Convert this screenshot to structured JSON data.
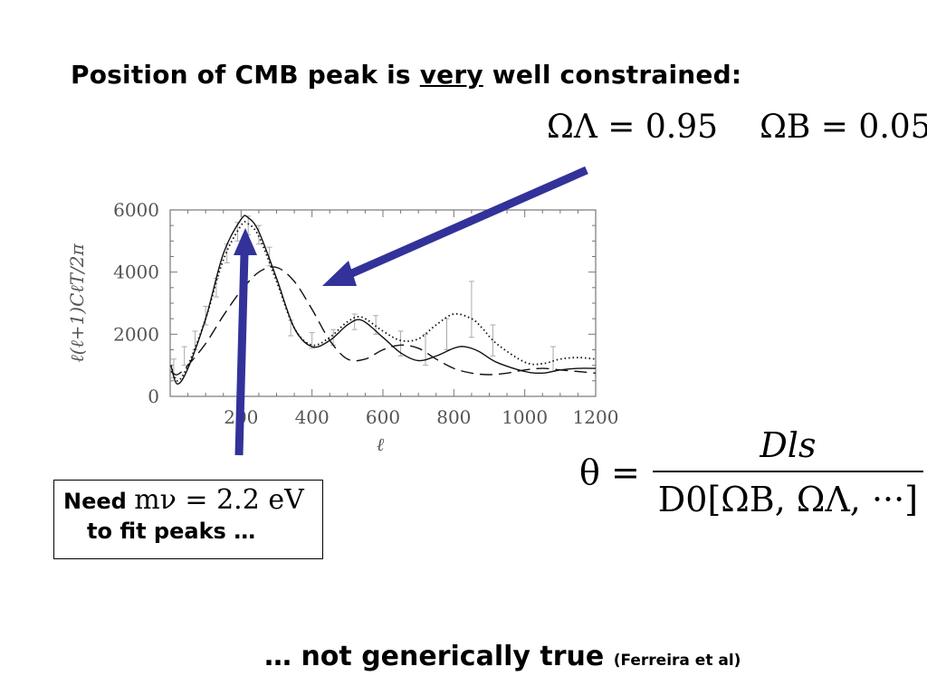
{
  "slide": {
    "heading_prefix": "Position of CMB peak is ",
    "heading_emph": "very",
    "heading_suffix": " well constrained:",
    "omega_lambda": "ΩΛ = 0.95",
    "omega_b": "ΩB = 0.05",
    "theta_lhs": "θ =",
    "theta_num": "Dls",
    "theta_den": "D0[ΩB, ΩΛ, ···]",
    "note_need": "Need ",
    "note_math": "mν = 2.2 eV",
    "note_line2": "to fit peaks …",
    "footer_main": "… not generically true ",
    "footer_cite": "(Ferreira et al)"
  },
  "colors": {
    "arrow": "#32329a",
    "curve": "#111111",
    "axis": "#777777",
    "error_bar": "#aaaaaa"
  },
  "chart_data": {
    "type": "line",
    "xlabel": "ℓ",
    "ylabel": "ℓ(ℓ+1)CℓT/2π",
    "xlim": [
      0,
      1200
    ],
    "ylim": [
      0,
      6000
    ],
    "x_ticks": [
      200,
      400,
      600,
      800,
      1000,
      1200
    ],
    "y_ticks": [
      0,
      2000,
      4000,
      6000
    ],
    "grid": false,
    "series": [
      {
        "style": "solid",
        "x": [
          2,
          20,
          50,
          100,
          150,
          200,
          220,
          250,
          300,
          350,
          400,
          450,
          500,
          540,
          600,
          650,
          700,
          750,
          800,
          830,
          870,
          920,
          1000,
          1050,
          1100,
          1150,
          1200
        ],
        "y": [
          1000,
          400,
          900,
          2500,
          4600,
          5700,
          5750,
          5300,
          3800,
          2200,
          1600,
          1800,
          2300,
          2450,
          1900,
          1400,
          1150,
          1300,
          1550,
          1600,
          1450,
          1100,
          800,
          750,
          850,
          900,
          900
        ]
      },
      {
        "style": "dotted",
        "x": [
          2,
          20,
          50,
          100,
          150,
          200,
          220,
          250,
          300,
          350,
          400,
          450,
          500,
          540,
          600,
          650,
          700,
          750,
          800,
          850,
          880,
          920,
          1000,
          1050,
          1100,
          1150,
          1200
        ],
        "y": [
          1000,
          500,
          1000,
          2500,
          4400,
          5500,
          5550,
          5150,
          3700,
          2200,
          1650,
          1900,
          2400,
          2550,
          2100,
          1800,
          1850,
          2300,
          2650,
          2500,
          2200,
          1700,
          1100,
          1050,
          1200,
          1250,
          1200
        ]
      },
      {
        "style": "dashed",
        "x": [
          2,
          20,
          50,
          100,
          150,
          200,
          250,
          300,
          350,
          400,
          450,
          500,
          550,
          600,
          650,
          700,
          750,
          800,
          850,
          900,
          950,
          1000,
          1050,
          1100,
          1150,
          1200
        ],
        "y": [
          800,
          700,
          1000,
          1700,
          2600,
          3400,
          4000,
          4150,
          3700,
          2800,
          1800,
          1200,
          1200,
          1500,
          1650,
          1550,
          1200,
          900,
          750,
          700,
          750,
          850,
          900,
          850,
          800,
          750
        ]
      }
    ],
    "error_bars": [
      {
        "x": 10,
        "y": 900,
        "err": 300
      },
      {
        "x": 40,
        "y": 1300,
        "err": 300
      },
      {
        "x": 70,
        "y": 1800,
        "err": 300
      },
      {
        "x": 100,
        "y": 2600,
        "err": 300
      },
      {
        "x": 130,
        "y": 3500,
        "err": 300
      },
      {
        "x": 160,
        "y": 4600,
        "err": 300
      },
      {
        "x": 190,
        "y": 5300,
        "err": 300
      },
      {
        "x": 220,
        "y": 5500,
        "err": 300
      },
      {
        "x": 250,
        "y": 5200,
        "err": 300
      },
      {
        "x": 280,
        "y": 4500,
        "err": 300
      },
      {
        "x": 340,
        "y": 2200,
        "err": 250
      },
      {
        "x": 400,
        "y": 1800,
        "err": 250
      },
      {
        "x": 460,
        "y": 1900,
        "err": 250
      },
      {
        "x": 520,
        "y": 2400,
        "err": 250
      },
      {
        "x": 580,
        "y": 2300,
        "err": 300
      },
      {
        "x": 650,
        "y": 1700,
        "err": 400
      },
      {
        "x": 720,
        "y": 1500,
        "err": 500
      },
      {
        "x": 780,
        "y": 2000,
        "err": 500
      },
      {
        "x": 850,
        "y": 2800,
        "err": 900
      },
      {
        "x": 910,
        "y": 1800,
        "err": 500
      },
      {
        "x": 1080,
        "y": 1200,
        "err": 400
      }
    ]
  }
}
